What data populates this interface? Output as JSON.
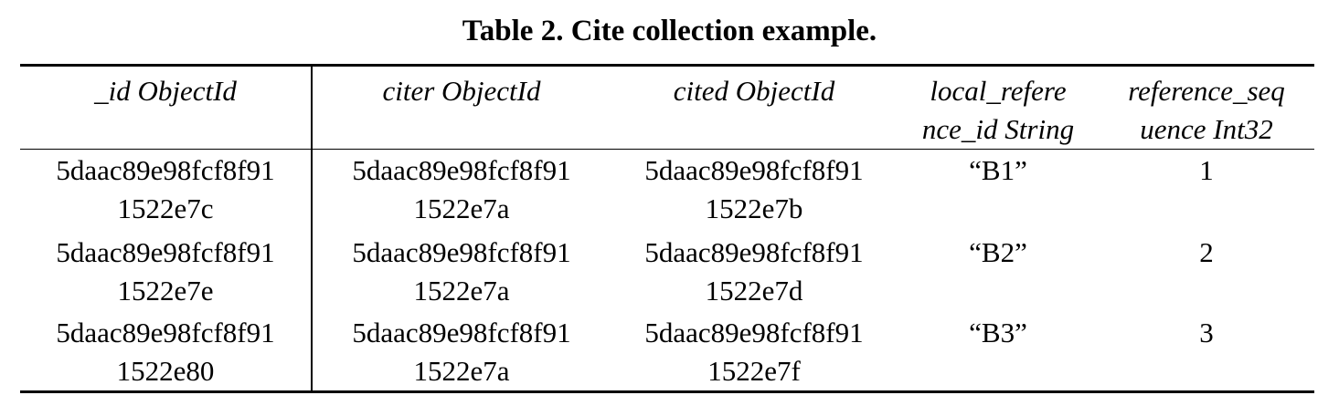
{
  "caption": "Table 2. Cite collection example.",
  "table": {
    "headers": [
      [
        "_id ObjectId"
      ],
      [
        "citer ObjectId"
      ],
      [
        "cited ObjectId"
      ],
      [
        "local_refere",
        "nce_id String"
      ],
      [
        "reference_seq",
        "uence Int32"
      ]
    ],
    "rows": [
      {
        "id": [
          "5daac89e98fcf8f91",
          "1522e7c"
        ],
        "citer": [
          "5daac89e98fcf8f91",
          "1522e7a"
        ],
        "cited": [
          "5daac89e98fcf8f91",
          "1522e7b"
        ],
        "local_reference_id": "“B1”",
        "reference_sequence": "1"
      },
      {
        "id": [
          "5daac89e98fcf8f91",
          "1522e7e"
        ],
        "citer": [
          "5daac89e98fcf8f91",
          "1522e7a"
        ],
        "cited": [
          "5daac89e98fcf8f91",
          "1522e7d"
        ],
        "local_reference_id": "“B2”",
        "reference_sequence": "2"
      },
      {
        "id": [
          "5daac89e98fcf8f91",
          "1522e80"
        ],
        "citer": [
          "5daac89e98fcf8f91",
          "1522e7a"
        ],
        "cited": [
          "5daac89e98fcf8f91",
          "1522e7f"
        ],
        "local_reference_id": "“B3”",
        "reference_sequence": "3"
      }
    ]
  }
}
